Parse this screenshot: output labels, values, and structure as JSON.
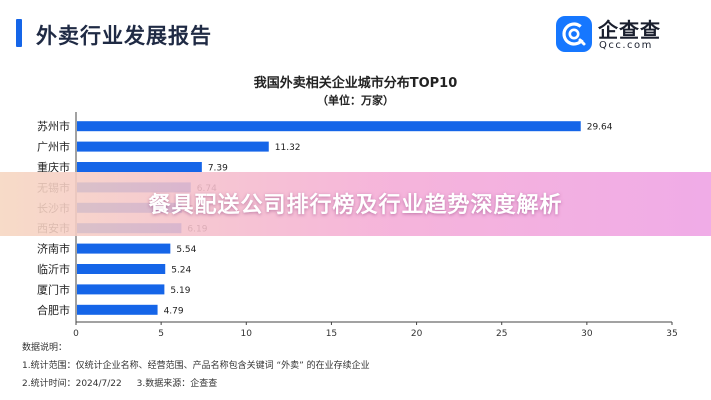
{
  "header": {
    "title": "外卖行业发展报告",
    "logo_name": "企查查",
    "logo_domain": "Qcc.com",
    "accent_color": "#1565e8"
  },
  "banner": {
    "text": "餐具配送公司排行榜及行业趋势深度解析"
  },
  "chart_data": {
    "type": "bar",
    "orientation": "horizontal",
    "title": "我国外卖相关企业城市分布TOP10",
    "subtitle": "（单位：万家）",
    "categories": [
      "苏州市",
      "广州市",
      "重庆市",
      "无锡市",
      "长沙市",
      "西安市",
      "济南市",
      "临沂市",
      "厦门市",
      "合肥市"
    ],
    "values": [
      29.64,
      11.32,
      7.39,
      6.74,
      6.21,
      6.19,
      5.54,
      5.24,
      5.19,
      4.79
    ],
    "value_labels": [
      "29.64",
      "11.32",
      "7.39",
      "6.74",
      "6.21",
      "6.19",
      "5.54",
      "5.24",
      "5.19",
      "4.79"
    ],
    "xlim": [
      0,
      35
    ],
    "xticks": [
      "0",
      "5",
      "10",
      "15",
      "20",
      "25",
      "30",
      "35"
    ],
    "bar_color": "#1565e8",
    "grid": false
  },
  "notes": {
    "heading": "数据说明：",
    "line1": "1.统计范围：仅统计企业名称、经营范围、产品名称包含关键词 “外卖” 的在业存续企业",
    "line2a": "2.统计时间：2024/7/22",
    "line2b": "3.数据来源：企查查"
  }
}
